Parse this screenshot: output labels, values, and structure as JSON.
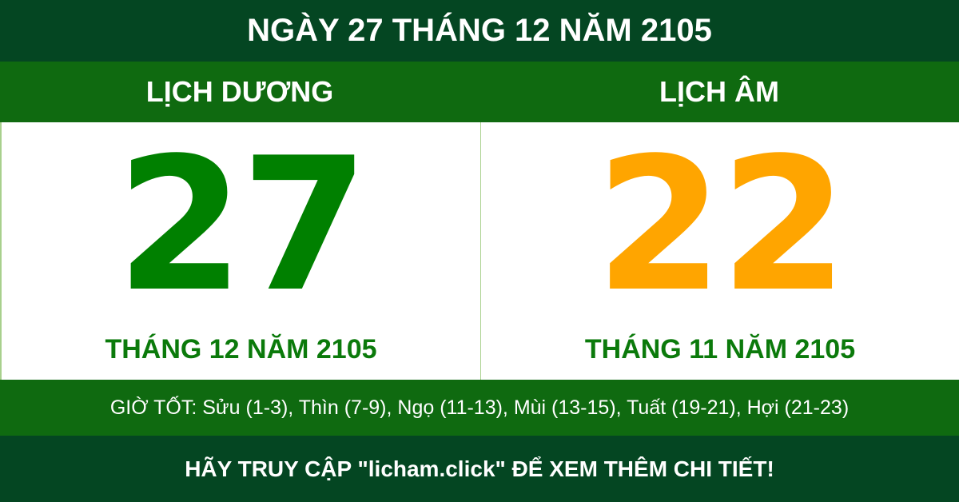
{
  "header": {
    "title": "NGÀY 27 THÁNG 12 NĂM 2105"
  },
  "solar": {
    "label": "LỊCH DƯƠNG",
    "day": "27",
    "month_year": "THÁNG 12 NĂM 2105",
    "color": "#008000"
  },
  "lunar": {
    "label": "LỊCH ÂM",
    "day": "22",
    "month_year": "THÁNG 11 NĂM 2105",
    "color": "#FFA500"
  },
  "good_hours": "GIỜ TỐT: Sửu (1-3), Thìn (7-9), Ngọ (11-13), Mùi (13-15), Tuất (19-21), Hợi (21-23)",
  "footer": "HÃY TRUY CẬP \"licham.click\" ĐỂ XEM THÊM CHI TIẾT!",
  "colors": {
    "dark_green": "#044622",
    "green": "#0F6A10"
  }
}
